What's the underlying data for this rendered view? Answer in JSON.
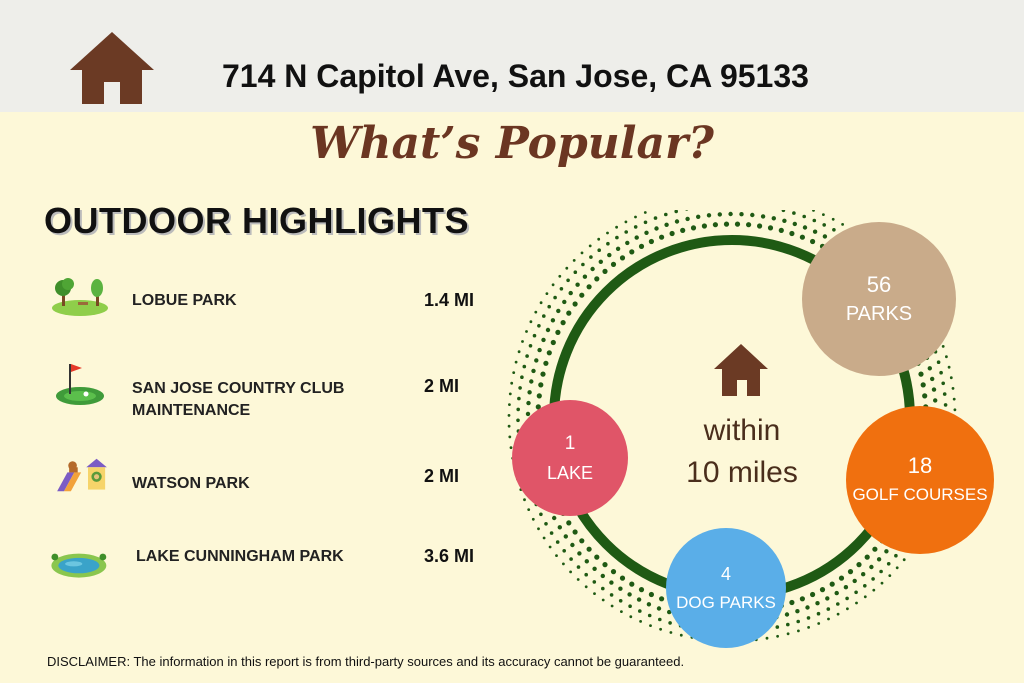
{
  "header": {
    "address": "714 N Capitol Ave, San Jose, CA 95133",
    "icon": "house-icon",
    "background": "#eeeeea"
  },
  "title": "What’s Popular?",
  "section": {
    "title": "OUTDOOR HIGHLIGHTS"
  },
  "highlights": [
    {
      "icon": "park-icon",
      "name": "LOBUE PARK",
      "distance": "1.4 MI"
    },
    {
      "icon": "golf-flag-icon",
      "name": "SAN JOSE COUNTRY CLUB MAINTENANCE",
      "distance": "2 MI"
    },
    {
      "icon": "dog-park-icon",
      "name": "WATSON PARK",
      "distance": "2 MI"
    },
    {
      "icon": "lake-icon",
      "name": "LAKE CUNNINGHAM PARK",
      "distance": "3.6 MI"
    }
  ],
  "diagram": {
    "center_icon": "house-icon",
    "center_line1": "within",
    "center_line2": "10 miles",
    "ring_color": "#1f5a14",
    "bubbles": [
      {
        "number": "56",
        "label": "PARKS",
        "color": "#c9ab8a"
      },
      {
        "number": "18",
        "label": "GOLF COURSES",
        "color": "#f0700f"
      },
      {
        "number": "4",
        "label": "DOG PARKS",
        "color": "#5aaee8"
      },
      {
        "number": "1",
        "label": "LAKE",
        "color": "#e05568"
      }
    ]
  },
  "disclaimer": "DISCLAIMER: The information in this report is from third-party sources and its accuracy cannot be guaranteed.",
  "colors": {
    "background": "#fdf8d8",
    "title": "#6b3622",
    "house": "#6b3a24"
  }
}
